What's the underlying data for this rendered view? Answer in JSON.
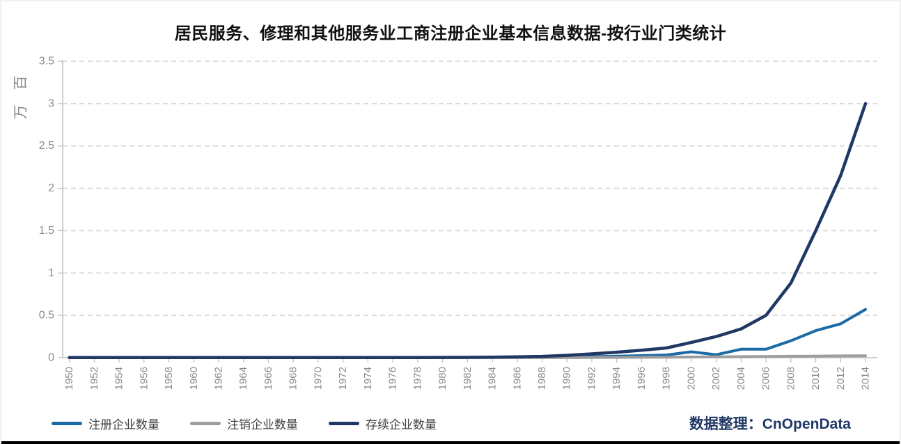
{
  "title": "居民服务、修理和其他服务业工商注册企业基本信息数据-按行业门类统计",
  "attribution": {
    "text": "数据整理：CnOpenData",
    "color": "#1f3864"
  },
  "chart_data": {
    "type": "line",
    "title": "居民服务、修理和其他服务业工商注册企业基本信息数据-按行业门类统计",
    "xlabel": "",
    "ylabel": "百万",
    "ylim": [
      0,
      3.5
    ],
    "ytick_step": 0.5,
    "yticks": [
      0,
      0.5,
      1,
      1.5,
      2,
      2.5,
      3,
      3.5
    ],
    "grid": true,
    "grid_style": "dashed",
    "legend_position": "bottom-left",
    "x": [
      1950,
      1952,
      1954,
      1956,
      1958,
      1960,
      1962,
      1964,
      1966,
      1968,
      1970,
      1972,
      1974,
      1976,
      1978,
      1980,
      1982,
      1984,
      1986,
      1988,
      1990,
      1992,
      1994,
      1996,
      1998,
      2000,
      2002,
      2004,
      2006,
      2008,
      2010,
      2012,
      2014
    ],
    "series": [
      {
        "key": "registered",
        "name": "注册企业数量",
        "color": "#1a6ba5",
        "values": [
          0.001,
          0.001,
          0.001,
          0.001,
          0.001,
          0.001,
          0.001,
          0.001,
          0.001,
          0.001,
          0.001,
          0.001,
          0.001,
          0.001,
          0.002,
          0.002,
          0.003,
          0.004,
          0.005,
          0.006,
          0.008,
          0.012,
          0.018,
          0.025,
          0.032,
          0.07,
          0.035,
          0.1,
          0.1,
          0.2,
          0.32,
          0.4,
          0.57
        ]
      },
      {
        "key": "deregistered",
        "name": "注销企业数量",
        "color": "#9e9e9e",
        "values": [
          0.001,
          0.001,
          0.001,
          0.001,
          0.001,
          0.001,
          0.001,
          0.001,
          0.001,
          0.001,
          0.001,
          0.001,
          0.001,
          0.001,
          0.001,
          0.001,
          0.001,
          0.001,
          0.001,
          0.001,
          0.001,
          0.002,
          0.003,
          0.005,
          0.006,
          0.008,
          0.01,
          0.012,
          0.014,
          0.017,
          0.019,
          0.021,
          0.022
        ]
      },
      {
        "key": "surviving",
        "name": "存续企业数量",
        "color": "#1f3864",
        "values": [
          0.002,
          0.002,
          0.002,
          0.002,
          0.002,
          0.002,
          0.002,
          0.002,
          0.002,
          0.002,
          0.002,
          0.002,
          0.002,
          0.002,
          0.002,
          0.003,
          0.004,
          0.006,
          0.01,
          0.016,
          0.028,
          0.045,
          0.065,
          0.088,
          0.115,
          0.18,
          0.25,
          0.34,
          0.5,
          0.88,
          1.5,
          2.15,
          3.0
        ]
      }
    ]
  }
}
